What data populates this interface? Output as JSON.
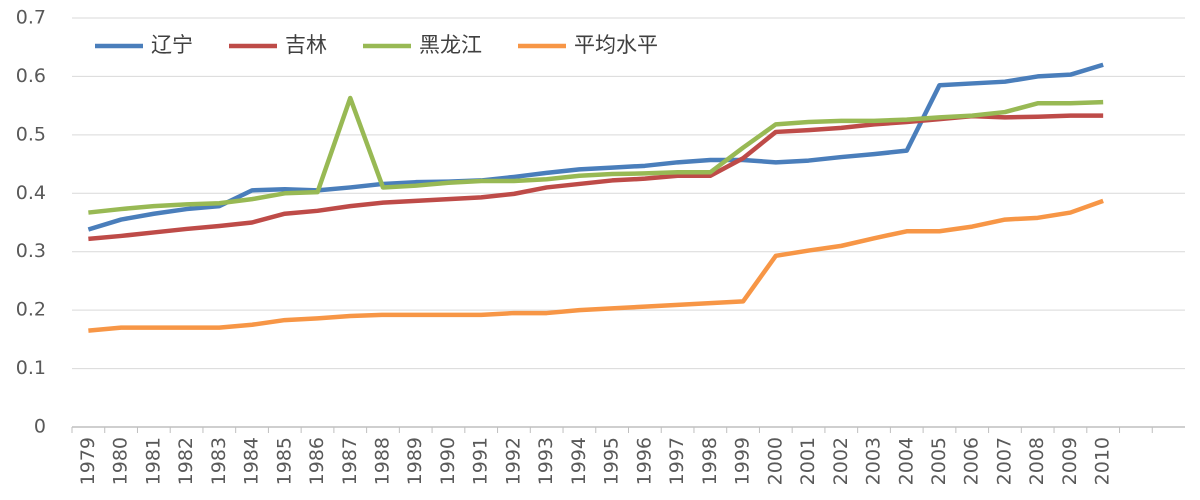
{
  "chart_data": {
    "type": "line",
    "categories": [
      "1979",
      "1980",
      "1981",
      "1982",
      "1983",
      "1984",
      "1985",
      "1986",
      "1987",
      "1988",
      "1989",
      "1990",
      "1991",
      "1992",
      "1993",
      "1994",
      "1995",
      "1996",
      "1997",
      "1998",
      "1999",
      "2000",
      "2001",
      "2002",
      "2003",
      "2004",
      "2005",
      "2006",
      "2007",
      "2008",
      "2009",
      "2010",
      null,
      null
    ],
    "series": [
      {
        "name": "辽宁",
        "color": "#4a7ebb",
        "values": [
          0.338,
          0.355,
          0.365,
          0.373,
          0.378,
          0.405,
          0.407,
          0.405,
          0.41,
          0.416,
          0.419,
          0.42,
          0.422,
          0.428,
          0.435,
          0.441,
          0.444,
          0.447,
          0.453,
          0.457,
          0.457,
          0.453,
          0.456,
          0.462,
          0.467,
          0.473,
          0.585,
          0.588,
          0.591,
          0.6,
          0.603,
          0.62,
          null,
          null
        ]
      },
      {
        "name": "吉林",
        "color": "#be4b48",
        "values": [
          0.322,
          0.327,
          0.333,
          0.339,
          0.344,
          0.35,
          0.365,
          0.37,
          0.378,
          0.384,
          0.387,
          0.39,
          0.393,
          0.399,
          0.41,
          0.416,
          0.422,
          0.425,
          0.43,
          0.43,
          0.46,
          0.505,
          0.508,
          0.512,
          0.518,
          0.522,
          0.527,
          0.532,
          0.53,
          0.531,
          0.533,
          0.533,
          null,
          null
        ]
      },
      {
        "name": "黑龙江",
        "color": "#98b954",
        "values": [
          0.367,
          0.373,
          0.378,
          0.381,
          0.383,
          0.39,
          0.4,
          0.402,
          0.563,
          0.41,
          0.413,
          0.418,
          0.421,
          0.421,
          0.424,
          0.43,
          0.433,
          0.434,
          0.436,
          0.436,
          0.478,
          0.518,
          0.522,
          0.524,
          0.524,
          0.526,
          0.53,
          0.533,
          0.539,
          0.554,
          0.554,
          0.556,
          null,
          null
        ]
      },
      {
        "name": "平均水平",
        "color": "#f79646",
        "values": [
          0.165,
          0.17,
          0.17,
          0.17,
          0.17,
          0.175,
          0.183,
          0.186,
          0.19,
          0.192,
          0.192,
          0.192,
          0.192,
          0.195,
          0.195,
          0.2,
          0.203,
          0.206,
          0.209,
          0.212,
          0.215,
          0.293,
          0.302,
          0.31,
          0.323,
          0.335,
          0.335,
          0.343,
          0.355,
          0.358,
          0.367,
          0.387,
          null,
          null
        ]
      }
    ],
    "ylim": [
      0,
      0.7
    ],
    "yticks": [
      0,
      0.1,
      0.2,
      0.3,
      0.4,
      0.5,
      0.6,
      0.7
    ],
    "grid": true,
    "legend": "top-left"
  }
}
